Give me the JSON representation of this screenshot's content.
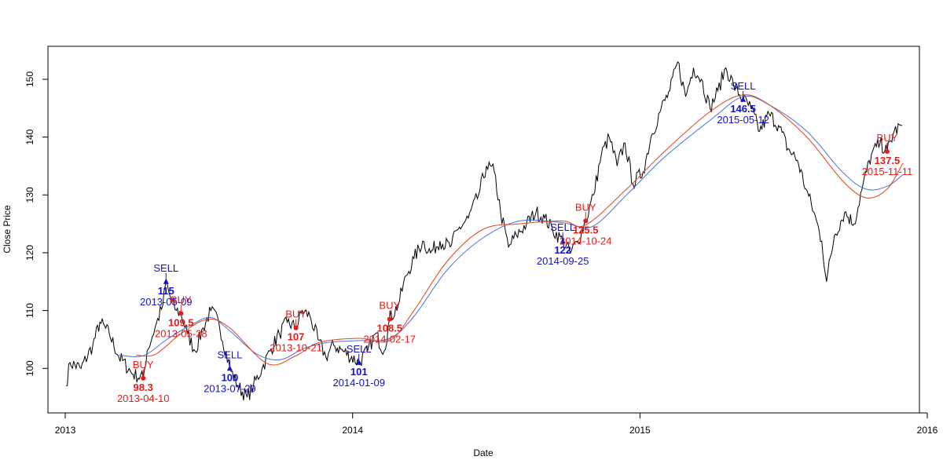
{
  "chart_data": {
    "type": "line",
    "title": "",
    "xlabel": "Date",
    "ylabel": "Close Price",
    "xlim": [
      "2012-12-10",
      "2015-12-22"
    ],
    "ylim": [
      92.3,
      155.7
    ],
    "x_ticks": [
      {
        "label": "2013",
        "date": "2013-01-01"
      },
      {
        "label": "2014",
        "date": "2014-01-01"
      },
      {
        "label": "2015",
        "date": "2015-01-01"
      },
      {
        "label": "2016",
        "date": "2016-01-01"
      }
    ],
    "y_ticks": [
      100,
      110,
      120,
      130,
      140,
      150
    ],
    "grid": false,
    "legend": "none",
    "colors": {
      "close": "#000000",
      "ma_blue": "#4A6FE0",
      "ma_red": "#E0441C",
      "buy": "#E81919",
      "sell": "#1212C8"
    },
    "close_anchors": [
      [
        "2013-01-02",
        97
      ],
      [
        "2013-01-07",
        101
      ],
      [
        "2013-01-21",
        100
      ],
      [
        "2013-02-05",
        104
      ],
      [
        "2013-02-14",
        108
      ],
      [
        "2013-02-26",
        106
      ],
      [
        "2013-03-10",
        102
      ],
      [
        "2013-03-28",
        99
      ],
      [
        "2013-04-10",
        98.3
      ],
      [
        "2013-04-15",
        103
      ],
      [
        "2013-04-25",
        107
      ],
      [
        "2013-05-05",
        111
      ],
      [
        "2013-05-09",
        115
      ],
      [
        "2013-05-15",
        112
      ],
      [
        "2013-05-22",
        110
      ],
      [
        "2013-05-28",
        109.5
      ],
      [
        "2013-06-05",
        106
      ],
      [
        "2013-06-15",
        103
      ],
      [
        "2013-06-25",
        107
      ],
      [
        "2013-07-05",
        110
      ],
      [
        "2013-07-15",
        108
      ],
      [
        "2013-07-29",
        100
      ],
      [
        "2013-08-08",
        97
      ],
      [
        "2013-08-20",
        95
      ],
      [
        "2013-08-28",
        97
      ],
      [
        "2013-09-08",
        100
      ],
      [
        "2013-09-18",
        103
      ],
      [
        "2013-09-30",
        106
      ],
      [
        "2013-10-10",
        108
      ],
      [
        "2013-10-21",
        107
      ],
      [
        "2013-10-29",
        110
      ],
      [
        "2013-11-08",
        109
      ],
      [
        "2013-11-18",
        105
      ],
      [
        "2013-11-28",
        102
      ],
      [
        "2013-12-08",
        104
      ],
      [
        "2013-12-20",
        103
      ],
      [
        "2014-01-09",
        101
      ],
      [
        "2014-01-20",
        103
      ],
      [
        "2014-01-30",
        106
      ],
      [
        "2014-02-10",
        103
      ],
      [
        "2014-02-17",
        108.5
      ],
      [
        "2014-02-28",
        111
      ],
      [
        "2014-03-10",
        116
      ],
      [
        "2014-03-20",
        119
      ],
      [
        "2014-03-31",
        122
      ],
      [
        "2014-04-10",
        120
      ],
      [
        "2014-04-22",
        122
      ],
      [
        "2014-05-05",
        121
      ],
      [
        "2014-05-15",
        124
      ],
      [
        "2014-05-28",
        126
      ],
      [
        "2014-06-10",
        130
      ],
      [
        "2014-06-20",
        135
      ],
      [
        "2014-06-30",
        134
      ],
      [
        "2014-07-08",
        127
      ],
      [
        "2014-07-18",
        121
      ],
      [
        "2014-07-28",
        123
      ],
      [
        "2014-08-10",
        125
      ],
      [
        "2014-08-22",
        127
      ],
      [
        "2014-09-02",
        126
      ],
      [
        "2014-09-12",
        124
      ],
      [
        "2014-09-25",
        122
      ],
      [
        "2014-10-05",
        120
      ],
      [
        "2014-10-14",
        122
      ],
      [
        "2014-10-24",
        125.5
      ],
      [
        "2014-11-03",
        130
      ],
      [
        "2014-11-13",
        137
      ],
      [
        "2014-11-23",
        140
      ],
      [
        "2014-12-03",
        135
      ],
      [
        "2014-12-13",
        139
      ],
      [
        "2014-12-23",
        132
      ],
      [
        "2015-01-05",
        134
      ],
      [
        "2015-01-15",
        140
      ],
      [
        "2015-01-28",
        145
      ],
      [
        "2015-02-08",
        148
      ],
      [
        "2015-02-18",
        153
      ],
      [
        "2015-02-28",
        147
      ],
      [
        "2015-03-10",
        152
      ],
      [
        "2015-03-20",
        150
      ],
      [
        "2015-03-31",
        145
      ],
      [
        "2015-04-10",
        148
      ],
      [
        "2015-04-20",
        152
      ],
      [
        "2015-04-30",
        149
      ],
      [
        "2015-05-12",
        146.5
      ],
      [
        "2015-05-22",
        145
      ],
      [
        "2015-06-02",
        141
      ],
      [
        "2015-06-14",
        144
      ],
      [
        "2015-06-26",
        142
      ],
      [
        "2015-07-08",
        138
      ],
      [
        "2015-07-20",
        136
      ],
      [
        "2015-07-31",
        131
      ],
      [
        "2015-08-10",
        127
      ],
      [
        "2015-08-20",
        122
      ],
      [
        "2015-08-26",
        115
      ],
      [
        "2015-09-05",
        123
      ],
      [
        "2015-09-18",
        127
      ],
      [
        "2015-09-30",
        125
      ],
      [
        "2015-10-10",
        131
      ],
      [
        "2015-10-22",
        137
      ],
      [
        "2015-11-02",
        139
      ],
      [
        "2015-11-11",
        137.5
      ],
      [
        "2015-11-20",
        141
      ],
      [
        "2015-11-30",
        142
      ]
    ],
    "ma_blue_anchors": [
      [
        "2013-03-10",
        102.3
      ],
      [
        "2013-04-10",
        102.2
      ],
      [
        "2013-05-10",
        105
      ],
      [
        "2013-06-10",
        107.5
      ],
      [
        "2013-07-05",
        108.8
      ],
      [
        "2013-07-29",
        106.5
      ],
      [
        "2013-09-01",
        102.5
      ],
      [
        "2013-10-01",
        101.5
      ],
      [
        "2013-11-01",
        103.5
      ],
      [
        "2013-12-01",
        104.5
      ],
      [
        "2014-01-09",
        104.8
      ],
      [
        "2014-02-17",
        105.2
      ],
      [
        "2014-03-20",
        109
      ],
      [
        "2014-05-01",
        117
      ],
      [
        "2014-06-15",
        122.5
      ],
      [
        "2014-08-01",
        125.5
      ],
      [
        "2014-09-25",
        125.2
      ],
      [
        "2014-11-01",
        124.5
      ],
      [
        "2014-12-15",
        130
      ],
      [
        "2015-02-01",
        136.5
      ],
      [
        "2015-04-01",
        143
      ],
      [
        "2015-05-12",
        147
      ],
      [
        "2015-06-15",
        145.5
      ],
      [
        "2015-08-01",
        141
      ],
      [
        "2015-09-15",
        134
      ],
      [
        "2015-10-15",
        131
      ],
      [
        "2015-11-11",
        131.5
      ],
      [
        "2015-12-01",
        133.5
      ]
    ],
    "ma_red_anchors": [
      [
        "2013-04-01",
        102.3
      ],
      [
        "2013-04-25",
        102.4
      ],
      [
        "2013-05-28",
        106
      ],
      [
        "2013-07-01",
        108.5
      ],
      [
        "2013-07-29",
        107
      ],
      [
        "2013-09-15",
        100.8
      ],
      [
        "2013-10-21",
        102.2
      ],
      [
        "2013-11-20",
        104.5
      ],
      [
        "2014-01-09",
        105.2
      ],
      [
        "2014-02-17",
        104.8
      ],
      [
        "2014-03-20",
        110
      ],
      [
        "2014-05-01",
        118.5
      ],
      [
        "2014-06-15",
        124
      ],
      [
        "2014-08-01",
        125
      ],
      [
        "2014-09-25",
        125.5
      ],
      [
        "2014-10-24",
        124.8
      ],
      [
        "2014-12-15",
        131
      ],
      [
        "2015-02-01",
        137.5
      ],
      [
        "2015-04-01",
        144.5
      ],
      [
        "2015-05-12",
        147.3
      ],
      [
        "2015-06-15",
        145.5
      ],
      [
        "2015-08-01",
        140
      ],
      [
        "2015-09-15",
        132.5
      ],
      [
        "2015-10-15",
        129.5
      ],
      [
        "2015-11-11",
        131
      ],
      [
        "2015-12-01",
        135.5
      ]
    ],
    "signals": [
      {
        "type": "BUY",
        "date": "2013-04-10",
        "price": 98.3,
        "price_label": "98.3",
        "date_label": "2013-04-10"
      },
      {
        "type": "SELL",
        "date": "2013-05-09",
        "price": 115,
        "price_label": "115",
        "date_label": "2013-05-09"
      },
      {
        "type": "BUY",
        "date": "2013-05-28",
        "price": 109.5,
        "price_label": "109.5",
        "date_label": "2013-05-28"
      },
      {
        "type": "SELL",
        "date": "2013-07-29",
        "price": 100,
        "price_label": "100",
        "date_label": "2013-07-29"
      },
      {
        "type": "BUY",
        "date": "2013-10-21",
        "price": 107,
        "price_label": "107",
        "date_label": "2013-10-21"
      },
      {
        "type": "SELL",
        "date": "2014-01-09",
        "price": 101,
        "price_label": "101",
        "date_label": "2014-01-09"
      },
      {
        "type": "BUY",
        "date": "2014-02-17",
        "price": 108.5,
        "price_label": "108.5",
        "date_label": "2014-02-17"
      },
      {
        "type": "SELL",
        "date": "2014-09-25",
        "price": 122,
        "price_label": "122",
        "date_label": "2014-09-25"
      },
      {
        "type": "BUY",
        "date": "2014-10-24",
        "price": 125.5,
        "price_label": "125.5",
        "date_label": "2014-10-24"
      },
      {
        "type": "SELL",
        "date": "2015-05-12",
        "price": 146.5,
        "price_label": "146.5",
        "date_label": "2015-05-12"
      },
      {
        "type": "BUY",
        "date": "2015-11-11",
        "price": 137.5,
        "price_label": "137.5",
        "date_label": "2015-11-11"
      }
    ]
  }
}
